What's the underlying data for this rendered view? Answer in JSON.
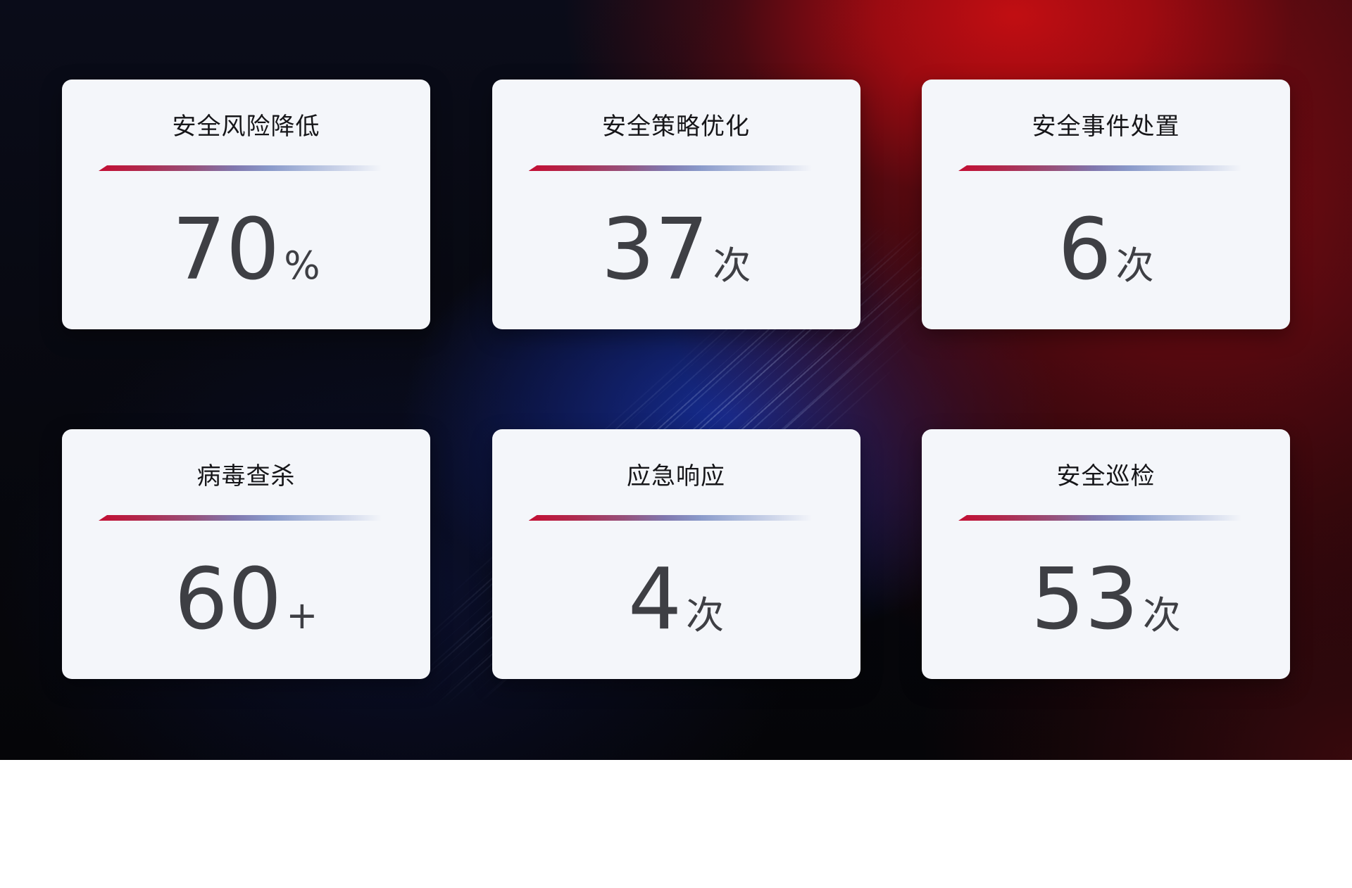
{
  "cards": [
    {
      "title": "安全风险降低",
      "value": "70",
      "unit": "%"
    },
    {
      "title": "安全策略优化",
      "value": "37",
      "unit": "次"
    },
    {
      "title": "安全事件处置",
      "value": "6",
      "unit": "次"
    },
    {
      "title": "病毒查杀",
      "value": "60",
      "unit": "+"
    },
    {
      "title": "应急响应",
      "value": "4",
      "unit": "次"
    },
    {
      "title": "安全巡检",
      "value": "53",
      "unit": "次"
    }
  ],
  "theme": {
    "card_background": "#f4f6fa",
    "title_color": "#161619",
    "value_color": "#3e3f44",
    "divider_gradient_start": "#c30e33",
    "divider_gradient_mid": "#8a9aca",
    "divider_gradient_end": "#ccd4e9",
    "background_red": "#c80e12",
    "background_dark_red": "#3a090d",
    "background_blue": "#172e98",
    "background_dark": "#05060c"
  }
}
